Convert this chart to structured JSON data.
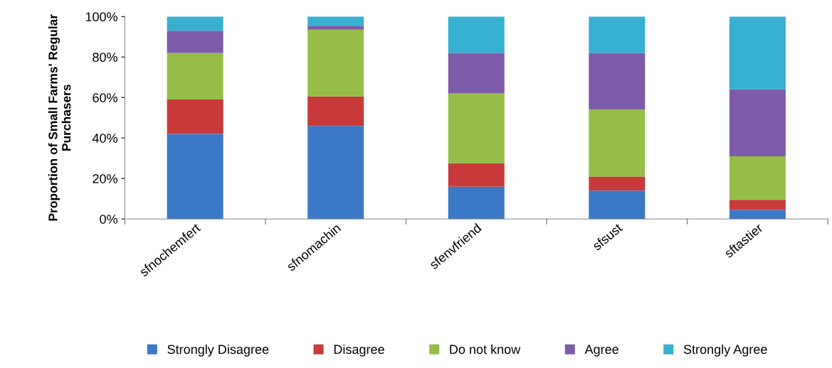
{
  "chart_data": {
    "type": "bar",
    "stacked": true,
    "ylabel": "Proportion of Small Farms' Regular\nPurchasers",
    "categories": [
      "sfnochemfert",
      "sfnomachin",
      "sfenvfriend",
      "sfsust",
      "sftastier"
    ],
    "series": [
      {
        "name": "Strongly Disagree",
        "color": "#3b79c6",
        "values": [
          42,
          46,
          16,
          14,
          4.5
        ]
      },
      {
        "name": "Disagree",
        "color": "#c93a3a",
        "values": [
          17,
          14.5,
          11.5,
          7,
          5
        ]
      },
      {
        "name": "Do not know",
        "color": "#95bd47",
        "values": [
          23,
          33,
          34.5,
          33,
          21.5
        ]
      },
      {
        "name": "Agree",
        "color": "#7d5ba8",
        "values": [
          11,
          2,
          20,
          28,
          33
        ]
      },
      {
        "name": "Strongly Agree",
        "color": "#37afd0",
        "values": [
          7,
          4.5,
          18,
          18,
          36
        ]
      }
    ],
    "ylim": [
      0,
      100
    ],
    "yticks": [
      {
        "value": 0,
        "label": "0%"
      },
      {
        "value": 20,
        "label": "20%"
      },
      {
        "value": 40,
        "label": "40%"
      },
      {
        "value": 60,
        "label": "60%"
      },
      {
        "value": 80,
        "label": "80%"
      },
      {
        "value": 100,
        "label": "100%"
      }
    ],
    "grid": false,
    "legend": "bottom"
  }
}
